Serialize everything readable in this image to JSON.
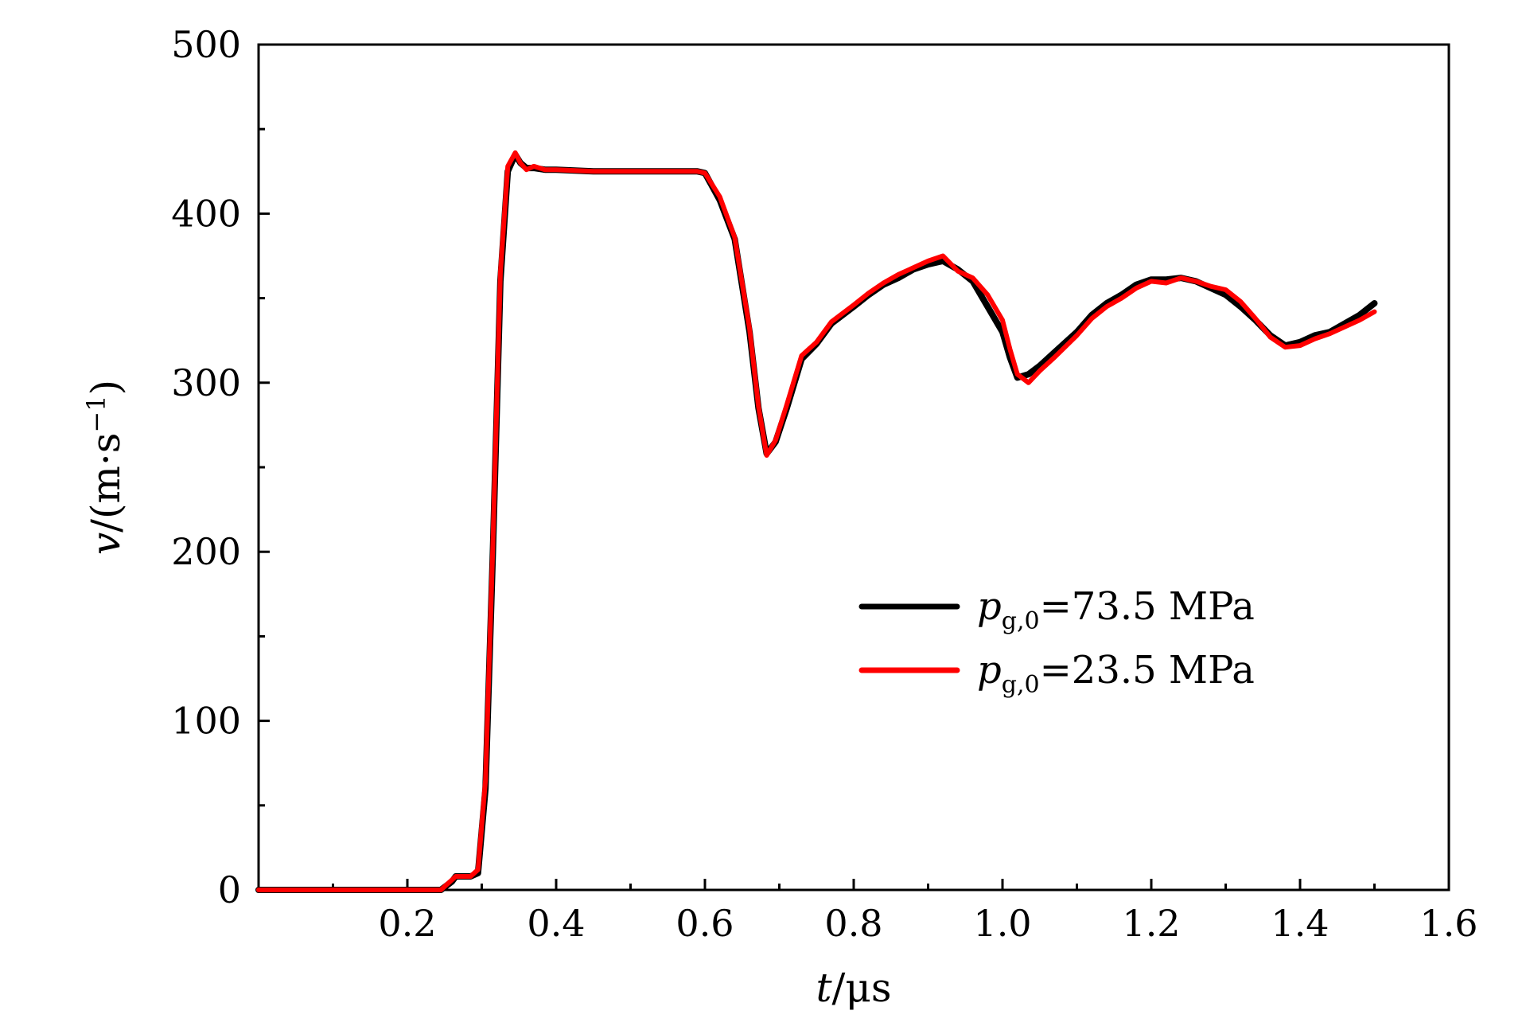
{
  "chart_data": {
    "type": "line",
    "xlabel": {
      "var": "t",
      "unit": "/μs"
    },
    "ylabel": {
      "var": "v",
      "unit": "/(m·s",
      "sup": "−1",
      "close": ")"
    },
    "xlim": [
      0,
      1.6
    ],
    "ylim": [
      0,
      500
    ],
    "x_ticks": [
      0.2,
      0.4,
      0.6,
      0.8,
      1.0,
      1.2,
      1.4,
      1.6
    ],
    "x_tick_labels": [
      "0.2",
      "0.4",
      "0.6",
      "0.8",
      "1.0",
      "1.2",
      "1.4",
      "1.6"
    ],
    "y_ticks": [
      0,
      100,
      200,
      300,
      400,
      500
    ],
    "y_tick_labels": [
      "0",
      "100",
      "200",
      "300",
      "400",
      "500"
    ],
    "grid": false,
    "legend_position": "center-right",
    "series": [
      {
        "legend": {
          "var": "p",
          "sub": "g,0",
          "value": "=73.5 MPa"
        },
        "color": "#000000",
        "x": [
          0,
          0.245,
          0.26,
          0.265,
          0.285,
          0.295,
          0.305,
          0.315,
          0.325,
          0.335,
          0.345,
          0.352,
          0.36,
          0.37,
          0.385,
          0.4,
          0.45,
          0.5,
          0.55,
          0.59,
          0.6,
          0.62,
          0.64,
          0.66,
          0.672,
          0.683,
          0.695,
          0.71,
          0.73,
          0.75,
          0.77,
          0.8,
          0.82,
          0.84,
          0.86,
          0.88,
          0.9,
          0.92,
          0.94,
          0.96,
          0.98,
          1.0,
          1.01,
          1.02,
          1.035,
          1.05,
          1.07,
          1.1,
          1.12,
          1.14,
          1.16,
          1.18,
          1.2,
          1.22,
          1.24,
          1.26,
          1.28,
          1.3,
          1.32,
          1.34,
          1.36,
          1.38,
          1.4,
          1.42,
          1.44,
          1.46,
          1.48,
          1.5
        ],
        "y": [
          0,
          0,
          5,
          8,
          8,
          10,
          60,
          200,
          360,
          425,
          435,
          430,
          427,
          427,
          426,
          426,
          425,
          425,
          425,
          425,
          424,
          408,
          385,
          330,
          285,
          258,
          265,
          285,
          314,
          323,
          335,
          345,
          352,
          358,
          362,
          367,
          370,
          372,
          367,
          360,
          345,
          330,
          315,
          303,
          305,
          310,
          318,
          330,
          340,
          347,
          352,
          358,
          361,
          361,
          362,
          360,
          356,
          352,
          345,
          337,
          328,
          322,
          324,
          328,
          330,
          335,
          340,
          347
        ]
      },
      {
        "legend": {
          "var": "p",
          "sub": "g,0",
          "value": "=23.5 MPa"
        },
        "color": "#ff0000",
        "x": [
          0,
          0.245,
          0.26,
          0.265,
          0.285,
          0.295,
          0.305,
          0.315,
          0.325,
          0.335,
          0.345,
          0.352,
          0.36,
          0.37,
          0.385,
          0.4,
          0.45,
          0.5,
          0.55,
          0.59,
          0.6,
          0.62,
          0.64,
          0.66,
          0.672,
          0.683,
          0.695,
          0.71,
          0.73,
          0.75,
          0.77,
          0.8,
          0.82,
          0.84,
          0.86,
          0.88,
          0.9,
          0.92,
          0.94,
          0.96,
          0.98,
          1.0,
          1.01,
          1.02,
          1.035,
          1.05,
          1.07,
          1.1,
          1.12,
          1.14,
          1.16,
          1.18,
          1.2,
          1.22,
          1.24,
          1.26,
          1.28,
          1.3,
          1.32,
          1.34,
          1.36,
          1.38,
          1.4,
          1.42,
          1.44,
          1.46,
          1.48,
          1.5
        ],
        "y": [
          0,
          0,
          6,
          8,
          8,
          12,
          65,
          205,
          365,
          428,
          436,
          430,
          426,
          428,
          426,
          426,
          425,
          425,
          425,
          425,
          424,
          410,
          386,
          332,
          286,
          257,
          266,
          287,
          316,
          324,
          336,
          346,
          353,
          359,
          364,
          368,
          372,
          375,
          366,
          362,
          352,
          337,
          320,
          305,
          300,
          307,
          315,
          328,
          338,
          345,
          350,
          356,
          360,
          359,
          362,
          360,
          357,
          355,
          348,
          338,
          327,
          321,
          322,
          326,
          329,
          333,
          337,
          342
        ]
      }
    ]
  }
}
